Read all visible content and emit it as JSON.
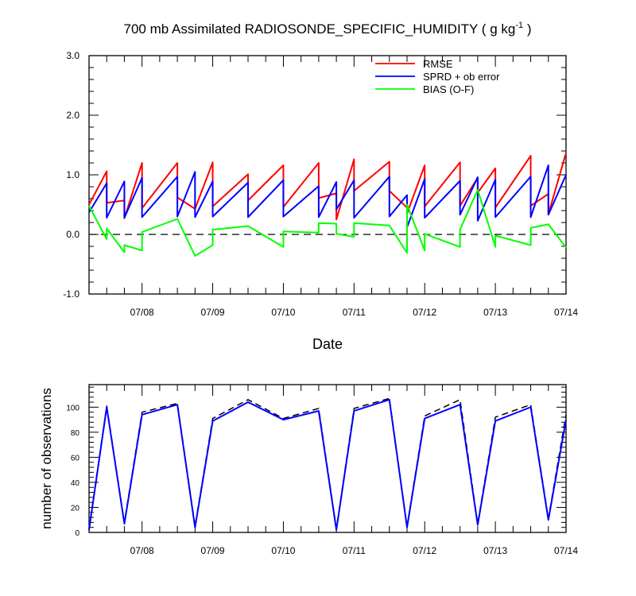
{
  "figure": {
    "title": "700 mb Assimilated RADIOSONDE_SPECIFIC_HUMIDITY ( g kg",
    "title_exp": "-1",
    "title_end": " )"
  },
  "chart_data": [
    {
      "type": "line",
      "title": "700 mb Assimilated RADIOSONDE_SPECIFIC_HUMIDITY ( g kg-1 )",
      "xlabel": "Date",
      "ylabel": "",
      "x_unit": "date (2016-07)",
      "xlim": [
        "07/07 06:00",
        "07/14 00:00"
      ],
      "ylim": [
        -1.0,
        3.0
      ],
      "yticks": [
        -1.0,
        0.0,
        1.0,
        2.0,
        3.0
      ],
      "ytick_labels": [
        "-1.0",
        "0.0",
        "1.0",
        "2.0",
        "3.0"
      ],
      "xtick_labels": [
        "07/08",
        "07/09",
        "07/10",
        "07/11",
        "07/12",
        "07/13",
        "07/14"
      ],
      "xtick_dates": [
        "07/08 00:00",
        "07/09 00:00",
        "07/10 00:00",
        "07/11 00:00",
        "07/12 00:00",
        "07/13 00:00",
        "07/14 00:00"
      ],
      "grid": false,
      "legend_position": "top-right",
      "zero_line": {
        "y": 0.0,
        "style": "dashed"
      },
      "series": [
        {
          "name": "RMSE",
          "color": "#ff0000",
          "points": [
            [
              "07/07 06:00",
              0.5
            ],
            [
              "07/07 12:00",
              1.06
            ],
            [
              "07/07 12:00",
              0.53
            ],
            [
              "07/07 18:00",
              0.57
            ],
            [
              "07/07 18:00",
              0.27
            ],
            [
              "07/08 00:00",
              1.2
            ],
            [
              "07/08 00:00",
              0.44
            ],
            [
              "07/08 12:00",
              1.2
            ],
            [
              "07/08 12:00",
              0.62
            ],
            [
              "07/08 18:00",
              0.43
            ],
            [
              "07/08 18:00",
              0.43
            ],
            [
              "07/09 00:00",
              1.21
            ],
            [
              "07/09 00:00",
              0.47
            ],
            [
              "07/09 12:00",
              1.01
            ],
            [
              "07/09 12:00",
              0.57
            ],
            [
              "07/10 00:00",
              1.16
            ],
            [
              "07/10 00:00",
              0.46
            ],
            [
              "07/10 12:00",
              1.2
            ],
            [
              "07/10 12:00",
              0.61
            ],
            [
              "07/10 18:00",
              0.69
            ],
            [
              "07/10 18:00",
              0.25
            ],
            [
              "07/11 00:00",
              1.26
            ],
            [
              "07/11 00:00",
              0.73
            ],
            [
              "07/11 12:00",
              1.22
            ],
            [
              "07/11 12:00",
              0.73
            ],
            [
              "07/11 18:00",
              0.45
            ],
            [
              "07/11 18:00",
              0.35
            ],
            [
              "07/12 00:00",
              1.16
            ],
            [
              "07/12 00:00",
              0.47
            ],
            [
              "07/12 12:00",
              1.21
            ],
            [
              "07/12 12:00",
              0.48
            ],
            [
              "07/12 18:00",
              0.95
            ],
            [
              "07/12 18:00",
              0.7
            ],
            [
              "07/13 00:00",
              1.11
            ],
            [
              "07/13 00:00",
              0.45
            ],
            [
              "07/13 12:00",
              1.32
            ],
            [
              "07/13 12:00",
              0.48
            ],
            [
              "07/13 18:00",
              0.68
            ],
            [
              "07/13 18:00",
              0.34
            ],
            [
              "07/14 00:00",
              1.37
            ]
          ]
        },
        {
          "name": "SPRD + ob error",
          "color": "#0000ff",
          "points": [
            [
              "07/07 06:00",
              0.37
            ],
            [
              "07/07 12:00",
              0.86
            ],
            [
              "07/07 12:00",
              0.28
            ],
            [
              "07/07 18:00",
              0.89
            ],
            [
              "07/07 18:00",
              0.28
            ],
            [
              "07/08 00:00",
              0.95
            ],
            [
              "07/08 00:00",
              0.29
            ],
            [
              "07/08 12:00",
              0.97
            ],
            [
              "07/08 12:00",
              0.3
            ],
            [
              "07/08 18:00",
              1.05
            ],
            [
              "07/08 18:00",
              0.29
            ],
            [
              "07/09 00:00",
              0.89
            ],
            [
              "07/09 00:00",
              0.3
            ],
            [
              "07/09 12:00",
              0.87
            ],
            [
              "07/09 12:00",
              0.29
            ],
            [
              "07/10 00:00",
              0.91
            ],
            [
              "07/10 00:00",
              0.3
            ],
            [
              "07/10 12:00",
              0.81
            ],
            [
              "07/10 12:00",
              0.29
            ],
            [
              "07/10 18:00",
              0.88
            ],
            [
              "07/10 18:00",
              0.42
            ],
            [
              "07/11 00:00",
              0.91
            ],
            [
              "07/11 00:00",
              0.28
            ],
            [
              "07/11 12:00",
              0.97
            ],
            [
              "07/11 12:00",
              0.3
            ],
            [
              "07/11 18:00",
              0.66
            ],
            [
              "07/11 18:00",
              0.12
            ],
            [
              "07/12 00:00",
              0.93
            ],
            [
              "07/12 00:00",
              0.28
            ],
            [
              "07/12 12:00",
              0.9
            ],
            [
              "07/12 12:00",
              0.33
            ],
            [
              "07/12 18:00",
              0.96
            ],
            [
              "07/12 18:00",
              0.23
            ],
            [
              "07/13 00:00",
              0.92
            ],
            [
              "07/13 00:00",
              0.29
            ],
            [
              "07/13 12:00",
              0.97
            ],
            [
              "07/13 12:00",
              0.29
            ],
            [
              "07/13 18:00",
              1.16
            ],
            [
              "07/13 18:00",
              0.33
            ],
            [
              "07/14 00:00",
              1.0
            ]
          ]
        },
        {
          "name": "BIAS (O-F)",
          "color": "#00ff00",
          "points": [
            [
              "07/07 06:00",
              0.48
            ],
            [
              "07/07 12:00",
              -0.08
            ],
            [
              "07/07 12:00",
              0.1
            ],
            [
              "07/07 18:00",
              -0.3
            ],
            [
              "07/07 18:00",
              -0.18
            ],
            [
              "07/08 00:00",
              -0.27
            ],
            [
              "07/08 00:00",
              0.04
            ],
            [
              "07/08 12:00",
              0.26
            ],
            [
              "07/08 12:00",
              0.26
            ],
            [
              "07/08 18:00",
              -0.36
            ],
            [
              "07/08 18:00",
              -0.36
            ],
            [
              "07/09 00:00",
              -0.18
            ],
            [
              "07/09 00:00",
              0.08
            ],
            [
              "07/09 12:00",
              0.14
            ],
            [
              "07/09 12:00",
              0.14
            ],
            [
              "07/10 00:00",
              -0.21
            ],
            [
              "07/10 00:00",
              0.05
            ],
            [
              "07/10 12:00",
              0.03
            ],
            [
              "07/10 12:00",
              0.19
            ],
            [
              "07/10 18:00",
              0.18
            ],
            [
              "07/10 18:00",
              0.01
            ],
            [
              "07/11 00:00",
              -0.04
            ],
            [
              "07/11 00:00",
              0.19
            ],
            [
              "07/11 12:00",
              0.15
            ],
            [
              "07/11 12:00",
              0.15
            ],
            [
              "07/11 18:00",
              -0.31
            ],
            [
              "07/11 18:00",
              0.5
            ],
            [
              "07/12 00:00",
              -0.27
            ],
            [
              "07/12 00:00",
              0.01
            ],
            [
              "07/12 12:00",
              -0.21
            ],
            [
              "07/12 12:00",
              0.08
            ],
            [
              "07/12 18:00",
              0.75
            ],
            [
              "07/12 18:00",
              0.75
            ],
            [
              "07/13 00:00",
              -0.21
            ],
            [
              "07/13 00:00",
              -0.02
            ],
            [
              "07/13 12:00",
              -0.18
            ],
            [
              "07/13 12:00",
              0.11
            ],
            [
              "07/13 18:00",
              0.17
            ],
            [
              "07/13 18:00",
              0.17
            ],
            [
              "07/14 00:00",
              -0.22
            ]
          ]
        }
      ]
    },
    {
      "type": "line",
      "title": "",
      "xlabel": "",
      "ylabel": "number of observations",
      "x_unit": "date (2016-07)",
      "xlim": [
        "07/07 06:00",
        "07/14 00:00"
      ],
      "ylim": [
        0,
        118
      ],
      "yticks": [
        0,
        20,
        40,
        60,
        80,
        100
      ],
      "ytick_labels": [
        "0",
        "20",
        "40",
        "60",
        "80",
        "100"
      ],
      "xtick_labels": [
        "07/08",
        "07/09",
        "07/10",
        "07/11",
        "07/12",
        "07/13",
        "07/14"
      ],
      "xtick_dates": [
        "07/08 00:00",
        "07/09 00:00",
        "07/10 00:00",
        "07/11 00:00",
        "07/12 00:00",
        "07/13 00:00",
        "07/14 00:00"
      ],
      "grid": false,
      "series": [
        {
          "color": "#000000",
          "style": "dashed",
          "points": [
            [
              "07/07 06:00",
              3
            ],
            [
              "07/07 12:00",
              101
            ],
            [
              "07/07 18:00",
              8
            ],
            [
              "07/08 00:00",
              96
            ],
            [
              "07/08 12:00",
              103
            ],
            [
              "07/08 18:00",
              5
            ],
            [
              "07/09 00:00",
              91
            ],
            [
              "07/09 12:00",
              106
            ],
            [
              "07/10 00:00",
              91
            ],
            [
              "07/10 12:00",
              99
            ],
            [
              "07/10 18:00",
              3
            ],
            [
              "07/11 00:00",
              99
            ],
            [
              "07/11 12:00",
              107
            ],
            [
              "07/11 18:00",
              5
            ],
            [
              "07/12 00:00",
              93
            ],
            [
              "07/12 12:00",
              106
            ],
            [
              "07/12 18:00",
              7
            ],
            [
              "07/13 00:00",
              92
            ],
            [
              "07/13 12:00",
              102
            ],
            [
              "07/13 18:00",
              11
            ],
            [
              "07/14 00:00",
              94
            ]
          ]
        },
        {
          "color": "#0000ff",
          "style": "solid",
          "points": [
            [
              "07/07 06:00",
              2
            ],
            [
              "07/07 12:00",
              100
            ],
            [
              "07/07 18:00",
              7
            ],
            [
              "07/08 00:00",
              94
            ],
            [
              "07/08 12:00",
              102
            ],
            [
              "07/08 18:00",
              4
            ],
            [
              "07/09 00:00",
              89
            ],
            [
              "07/09 12:00",
              104
            ],
            [
              "07/10 00:00",
              90
            ],
            [
              "07/10 12:00",
              97
            ],
            [
              "07/10 18:00",
              2
            ],
            [
              "07/11 00:00",
              97
            ],
            [
              "07/11 12:00",
              106
            ],
            [
              "07/11 18:00",
              4
            ],
            [
              "07/12 00:00",
              91
            ],
            [
              "07/12 12:00",
              102
            ],
            [
              "07/12 18:00",
              6
            ],
            [
              "07/13 00:00",
              89
            ],
            [
              "07/13 12:00",
              100
            ],
            [
              "07/13 18:00",
              10
            ],
            [
              "07/14 00:00",
              90
            ]
          ]
        }
      ]
    }
  ]
}
